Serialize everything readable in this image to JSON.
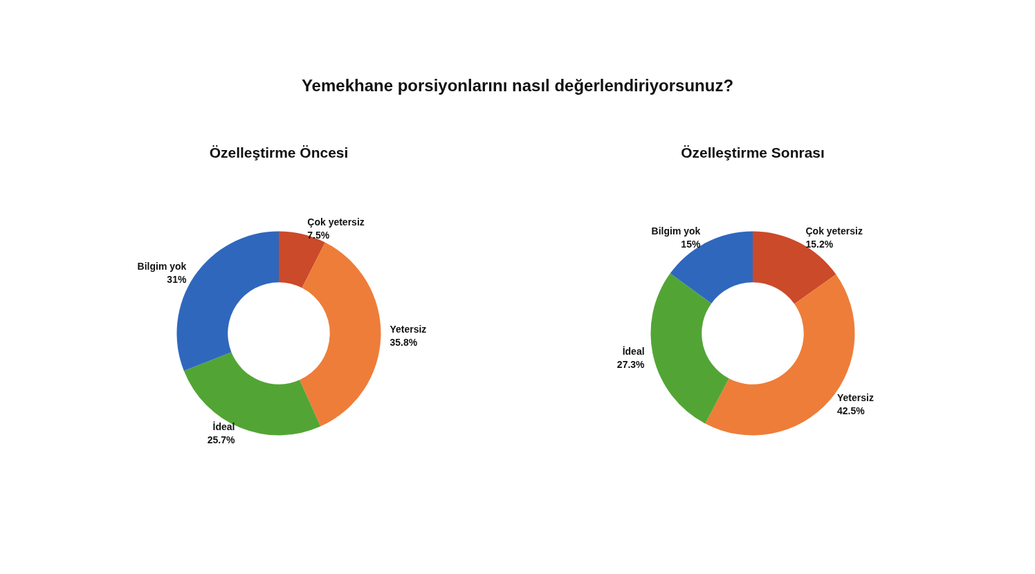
{
  "chart_data": [
    {
      "type": "donut",
      "title": "Yemekhane porsiyonlarını nasıl değerlendiriyorsunuz?",
      "subtitle": "Özelleştirme Öncesi",
      "categories": [
        "Çok yetersiz",
        "Yetersiz",
        "İdeal",
        "Bilgim yok"
      ],
      "values": [
        7.5,
        35.8,
        25.7,
        31
      ],
      "colors": [
        "#cb4a2a",
        "#ee7d39",
        "#52a535",
        "#2f67bd"
      ],
      "value_labels": [
        "7.5%",
        "35.8%",
        "25.7%",
        "31%"
      ],
      "legend": false
    },
    {
      "type": "donut",
      "subtitle": "Özelleştirme Sonrası",
      "categories": [
        "Çok yetersiz",
        "Yetersiz",
        "İdeal",
        "Bilgim yok"
      ],
      "values": [
        15.2,
        42.5,
        27.3,
        15
      ],
      "colors": [
        "#cb4a2a",
        "#ee7d39",
        "#52a535",
        "#2f67bd"
      ],
      "value_labels": [
        "15.2%",
        "42.5%",
        "27.3%",
        "15%"
      ],
      "legend": false
    }
  ]
}
